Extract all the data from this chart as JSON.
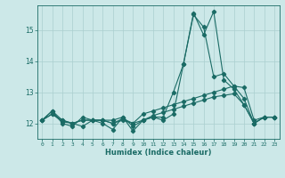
{
  "xlabel": "Humidex (Indice chaleur)",
  "bg_color": "#cce8e8",
  "line_color": "#1a6b65",
  "grid_color": "#aacfcf",
  "xlim": [
    -0.5,
    23.5
  ],
  "ylim": [
    11.5,
    15.8
  ],
  "yticks": [
    12,
    13,
    14,
    15
  ],
  "xticks": [
    0,
    1,
    2,
    3,
    4,
    5,
    6,
    7,
    8,
    9,
    10,
    11,
    12,
    13,
    14,
    15,
    16,
    17,
    18,
    19,
    20,
    21,
    22,
    23
  ],
  "line1": [
    12.1,
    12.4,
    12.1,
    12.0,
    11.9,
    12.1,
    12.1,
    12.1,
    12.2,
    11.9,
    12.1,
    12.2,
    12.2,
    13.0,
    13.9,
    15.5,
    15.1,
    13.5,
    13.6,
    13.2,
    12.8,
    12.0,
    12.2,
    12.2
  ],
  "line2": [
    12.1,
    12.4,
    12.0,
    11.9,
    12.2,
    12.1,
    12.0,
    11.8,
    12.2,
    11.75,
    12.1,
    12.2,
    12.1,
    12.3,
    13.9,
    15.55,
    14.85,
    15.6,
    13.4,
    13.1,
    12.6,
    12.0,
    12.2,
    12.2
  ],
  "line3": [
    12.1,
    12.3,
    12.05,
    12.0,
    12.1,
    12.1,
    12.1,
    12.0,
    12.15,
    12.0,
    12.3,
    12.4,
    12.5,
    12.6,
    12.7,
    12.8,
    12.9,
    13.0,
    13.1,
    13.2,
    13.15,
    12.1,
    12.2,
    12.2
  ],
  "line4": [
    12.1,
    12.3,
    12.1,
    12.0,
    12.1,
    12.1,
    12.1,
    12.0,
    12.1,
    12.0,
    12.1,
    12.25,
    12.35,
    12.45,
    12.55,
    12.65,
    12.75,
    12.85,
    12.9,
    12.95,
    12.6,
    12.0,
    12.2,
    12.2
  ]
}
